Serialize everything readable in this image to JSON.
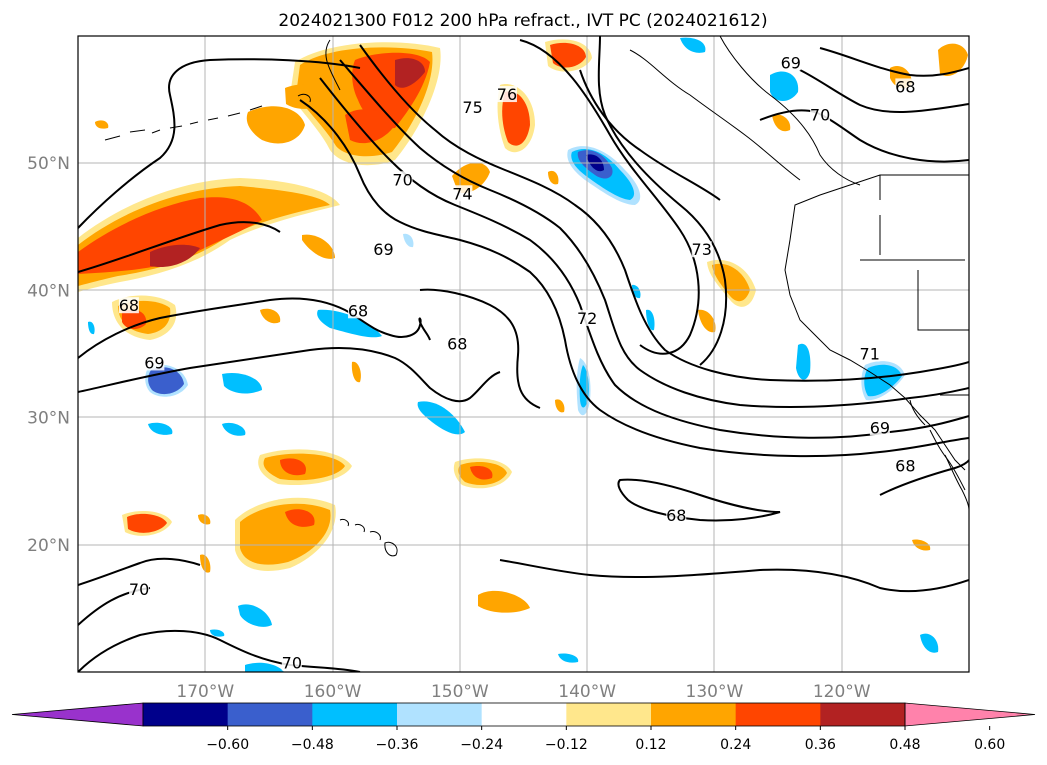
{
  "title": "2024021300 F012 200 hPa refract., IVT PC (2024021612)",
  "map": {
    "lon_range": [
      -180,
      -110
    ],
    "lat_range": [
      10,
      60
    ],
    "lat_ticks": [
      {
        "value": 50,
        "label": "50°N"
      },
      {
        "value": 40,
        "label": "40°N"
      },
      {
        "value": 30,
        "label": "30°N"
      },
      {
        "value": 20,
        "label": "20°N"
      }
    ],
    "lon_ticks": [
      {
        "value": -170,
        "label": "170°W"
      },
      {
        "value": -160,
        "label": "160°W"
      },
      {
        "value": -150,
        "label": "150°W"
      },
      {
        "value": -140,
        "label": "140°W"
      },
      {
        "value": -130,
        "label": "130°W"
      },
      {
        "value": -120,
        "label": "120°W"
      }
    ],
    "gridlines": true
  },
  "contour_labels": [
    {
      "text": "75",
      "lon": -149.0,
      "lat": 54.2
    },
    {
      "text": "76",
      "lon": -146.3,
      "lat": 55.2
    },
    {
      "text": "70",
      "lon": -154.5,
      "lat": 48.5
    },
    {
      "text": "74",
      "lon": -149.8,
      "lat": 47.4
    },
    {
      "text": "69",
      "lon": -156.0,
      "lat": 43.0
    },
    {
      "text": "73",
      "lon": -131.0,
      "lat": 43.0
    },
    {
      "text": "68",
      "lon": -176.0,
      "lat": 38.6
    },
    {
      "text": "68",
      "lon": -158.0,
      "lat": 38.2
    },
    {
      "text": "72",
      "lon": -140.0,
      "lat": 37.6
    },
    {
      "text": "68",
      "lon": -150.2,
      "lat": 35.6
    },
    {
      "text": "69",
      "lon": -174.0,
      "lat": 34.1
    },
    {
      "text": "71",
      "lon": -117.8,
      "lat": 34.8
    },
    {
      "text": "69",
      "lon": -117.0,
      "lat": 29.0
    },
    {
      "text": "68",
      "lon": -115.0,
      "lat": 26.0
    },
    {
      "text": "68",
      "lon": -133.0,
      "lat": 22.1
    },
    {
      "text": "70",
      "lon": -175.2,
      "lat": 16.3
    },
    {
      "text": "70",
      "lon": -163.2,
      "lat": 10.5
    },
    {
      "text": "69",
      "lon": -124.0,
      "lat": 57.7
    },
    {
      "text": "70",
      "lon": -121.7,
      "lat": 53.6
    },
    {
      "text": "68",
      "lon": -115.0,
      "lat": 55.8
    }
  ],
  "colorbar": {
    "ticks": [
      "−0.60",
      "−0.48",
      "−0.36",
      "−0.24",
      "−0.12",
      "0.12",
      "0.24",
      "0.36",
      "0.48",
      "0.60"
    ],
    "colors": [
      "#9932cc",
      "#00008b",
      "#3a5fcd",
      "#00bfff",
      "#b0e2ff",
      "#ffffff",
      "#ffe78c",
      "#ffa500",
      "#ff4500",
      "#b22222",
      "#ff82ab"
    ]
  }
}
